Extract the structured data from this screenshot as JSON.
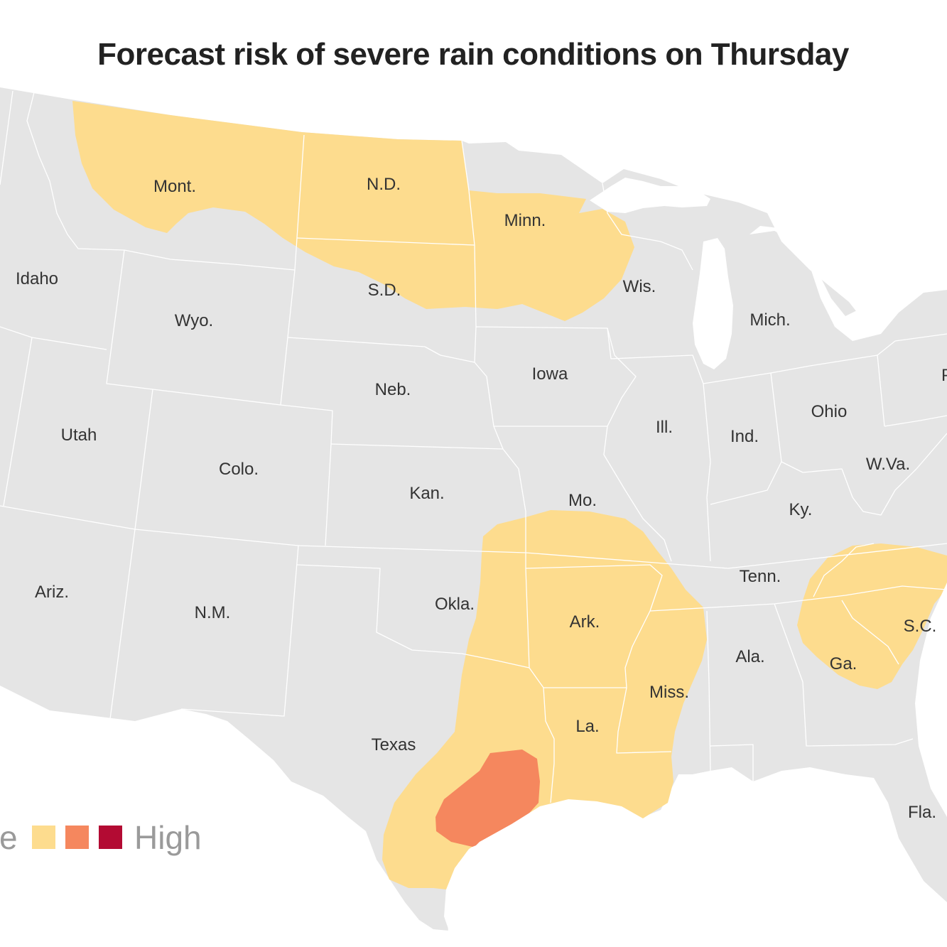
{
  "title": "Forecast risk of severe rain conditions on Thursday",
  "colors": {
    "land": "#e5e5e5",
    "water": "#ffffff",
    "border": "#ffffff",
    "risk_marginal": "#fddc8e",
    "risk_moderate": "#f5875e",
    "risk_high": "#b30b33"
  },
  "legend": {
    "left_text": "e",
    "right_text": "High",
    "swatches": [
      {
        "level": "marginal",
        "color": "#fddc8e"
      },
      {
        "level": "moderate",
        "color": "#f5875e"
      },
      {
        "level": "high",
        "color": "#b30b33"
      }
    ]
  },
  "states": {
    "mont": "Mont.",
    "nd": "N.D.",
    "minn": "Minn.",
    "idaho": "Idaho",
    "sd": "S.D.",
    "wis": "Wis.",
    "wyo": "Wyo.",
    "mich": "Mich.",
    "iowa": "Iowa",
    "neb": "Neb.",
    "ohio": "Ohio",
    "utah": "Utah",
    "ill": "Ill.",
    "ind": "Ind.",
    "colo": "Colo.",
    "wva": "W.Va.",
    "kan": "Kan.",
    "mo": "Mo.",
    "ky": "Ky.",
    "tenn": "Tenn.",
    "ariz": "Ariz.",
    "okla": "Okla.",
    "nm": "N.M.",
    "ark": "Ark.",
    "sc": "S.C.",
    "ala": "Ala.",
    "ga": "Ga.",
    "miss": "Miss.",
    "la": "La.",
    "texas": "Texas",
    "fla": "Fla.",
    "pa_partial": "P"
  },
  "risk_areas": [
    {
      "name": "northern-plains",
      "level": "marginal"
    },
    {
      "name": "southern-plains-mississippi-valley",
      "level": "marginal"
    },
    {
      "name": "georgia-carolinas",
      "level": "marginal"
    },
    {
      "name": "southeast-texas",
      "level": "moderate"
    }
  ]
}
